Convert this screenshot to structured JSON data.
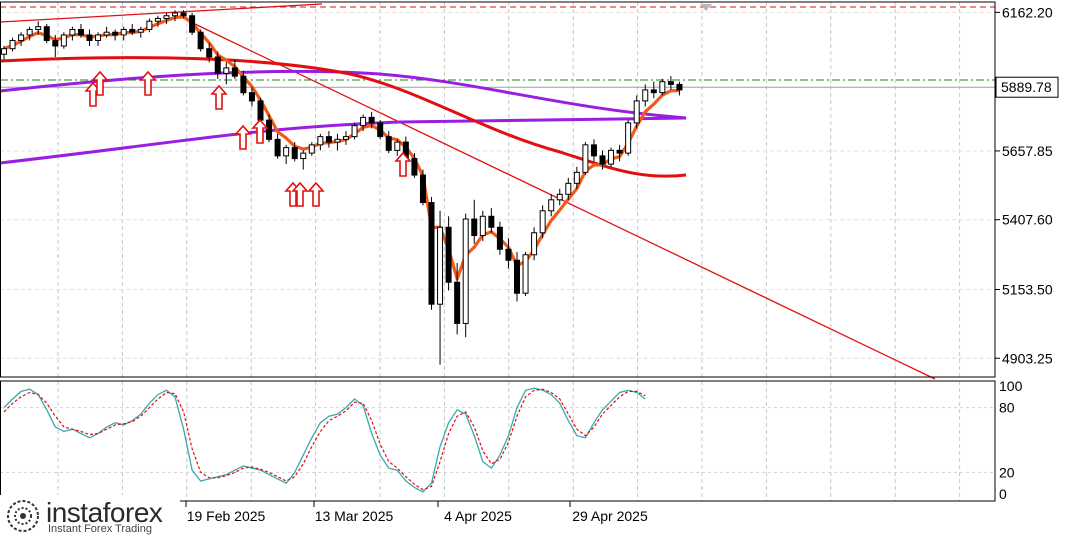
{
  "chart_data": [
    {
      "type": "candlestick",
      "price_ticks": [
        6162.2,
        5657.85,
        5407.6,
        5153.5,
        4903.25
      ],
      "price_ticks_text": [
        "6162.20",
        "5657.85",
        "5407.60",
        "5153.50",
        "4903.25"
      ],
      "current_price": 5889.78,
      "current_price_text": "5889.78",
      "ylim": [
        4835,
        6200
      ],
      "date_labels": [
        "19 Feb 2025",
        "13 Mar 2025",
        "4 Apr 2025",
        "29 Apr 2025"
      ],
      "candles": [
        [
          6010,
          6040,
          5990,
          6030
        ],
        [
          6030,
          6070,
          6020,
          6060
        ],
        [
          6060,
          6090,
          6040,
          6080
        ],
        [
          6080,
          6110,
          6060,
          6100
        ],
        [
          6100,
          6130,
          6080,
          6110
        ],
        [
          6110,
          6120,
          6050,
          6060
        ],
        [
          6060,
          6080,
          6000,
          6040
        ],
        [
          6040,
          6090,
          6030,
          6080
        ],
        [
          6080,
          6110,
          6060,
          6100
        ],
        [
          6100,
          6120,
          6070,
          6080
        ],
        [
          6080,
          6100,
          6040,
          6060
        ],
        [
          6060,
          6090,
          6040,
          6080
        ],
        [
          6080,
          6110,
          6070,
          6090
        ],
        [
          6090,
          6100,
          6060,
          6080
        ],
        [
          6080,
          6110,
          6060,
          6100
        ],
        [
          6100,
          6120,
          6080,
          6090
        ],
        [
          6090,
          6110,
          6070,
          6100
        ],
        [
          6100,
          6140,
          6090,
          6130
        ],
        [
          6130,
          6150,
          6110,
          6140
        ],
        [
          6140,
          6160,
          6120,
          6150
        ],
        [
          6150,
          6170,
          6130,
          6160
        ],
        [
          6160,
          6170,
          6140,
          6150
        ],
        [
          6150,
          6160,
          6080,
          6090
        ],
        [
          6090,
          6100,
          6020,
          6030
        ],
        [
          6030,
          6050,
          5980,
          6000
        ],
        [
          6000,
          6020,
          5920,
          5940
        ],
        [
          5940,
          5980,
          5900,
          5960
        ],
        [
          5960,
          5990,
          5920,
          5930
        ],
        [
          5930,
          5950,
          5860,
          5870
        ],
        [
          5870,
          5890,
          5820,
          5840
        ],
        [
          5840,
          5850,
          5760,
          5770
        ],
        [
          5770,
          5790,
          5690,
          5700
        ],
        [
          5700,
          5720,
          5630,
          5640
        ],
        [
          5640,
          5680,
          5610,
          5670
        ],
        [
          5670,
          5690,
          5620,
          5630
        ],
        [
          5630,
          5660,
          5590,
          5650
        ],
        [
          5650,
          5690,
          5640,
          5680
        ],
        [
          5680,
          5720,
          5660,
          5710
        ],
        [
          5710,
          5730,
          5670,
          5690
        ],
        [
          5690,
          5720,
          5660,
          5700
        ],
        [
          5700,
          5730,
          5680,
          5710
        ],
        [
          5710,
          5760,
          5700,
          5750
        ],
        [
          5750,
          5790,
          5730,
          5780
        ],
        [
          5780,
          5800,
          5740,
          5760
        ],
        [
          5760,
          5770,
          5700,
          5710
        ],
        [
          5710,
          5730,
          5650,
          5660
        ],
        [
          5660,
          5700,
          5640,
          5690
        ],
        [
          5690,
          5710,
          5620,
          5630
        ],
        [
          5630,
          5650,
          5560,
          5570
        ],
        [
          5570,
          5590,
          5460,
          5470
        ],
        [
          5470,
          5490,
          5080,
          5100
        ],
        [
          5100,
          5440,
          4880,
          5380
        ],
        [
          5380,
          5420,
          5150,
          5180
        ],
        [
          5180,
          5250,
          4990,
          5030
        ],
        [
          5030,
          5430,
          4980,
          5410
        ],
        [
          5410,
          5480,
          5320,
          5350
        ],
        [
          5350,
          5440,
          5330,
          5420
        ],
        [
          5420,
          5450,
          5360,
          5380
        ],
        [
          5380,
          5400,
          5280,
          5300
        ],
        [
          5300,
          5340,
          5230,
          5260
        ],
        [
          5260,
          5290,
          5110,
          5140
        ],
        [
          5140,
          5290,
          5130,
          5280
        ],
        [
          5280,
          5380,
          5260,
          5360
        ],
        [
          5360,
          5460,
          5340,
          5440
        ],
        [
          5440,
          5500,
          5420,
          5480
        ],
        [
          5480,
          5520,
          5460,
          5500
        ],
        [
          5500,
          5560,
          5480,
          5540
        ],
        [
          5540,
          5600,
          5520,
          5580
        ],
        [
          5580,
          5690,
          5570,
          5680
        ],
        [
          5680,
          5700,
          5620,
          5640
        ],
        [
          5640,
          5660,
          5590,
          5610
        ],
        [
          5610,
          5670,
          5600,
          5660
        ],
        [
          5660,
          5680,
          5620,
          5650
        ],
        [
          5650,
          5770,
          5640,
          5760
        ],
        [
          5760,
          5860,
          5740,
          5840
        ],
        [
          5840,
          5900,
          5820,
          5880
        ],
        [
          5880,
          5910,
          5850,
          5870
        ],
        [
          5870,
          5920,
          5860,
          5910
        ],
        [
          5910,
          5930,
          5880,
          5900
        ],
        [
          5900,
          5910,
          5860,
          5880
        ]
      ]
    },
    {
      "type": "line",
      "oscillator_ticks": [
        100,
        80,
        20,
        0
      ],
      "oscillator_ticks_text": [
        "100",
        "80",
        "20",
        "0"
      ],
      "ylim": [
        0,
        100
      ],
      "series": [
        {
          "values": [
            80,
            88,
            95,
            97,
            92,
            78,
            62,
            58,
            60,
            56,
            52,
            56,
            62,
            66,
            64,
            68,
            74,
            84,
            92,
            96,
            90,
            60,
            22,
            12,
            14,
            16,
            18,
            22,
            26,
            24,
            22,
            18,
            14,
            10,
            20,
            36,
            52,
            66,
            72,
            74,
            80,
            88,
            82,
            56,
            36,
            24,
            22,
            12,
            6,
            2,
            10,
            44,
            66,
            78,
            74,
            54,
            30,
            24,
            36,
            54,
            80,
            96,
            98,
            96,
            92,
            84,
            68,
            54,
            52,
            66,
            78,
            86,
            94,
            96,
            94,
            88
          ]
        },
        {
          "values": [
            76,
            84,
            90,
            94,
            92,
            84,
            72,
            62,
            60,
            58,
            55,
            56,
            60,
            64,
            65,
            67,
            72,
            80,
            88,
            94,
            93,
            76,
            42,
            20,
            15,
            15,
            17,
            20,
            24,
            25,
            23,
            20,
            16,
            12,
            16,
            28,
            44,
            58,
            68,
            72,
            77,
            85,
            84,
            68,
            46,
            30,
            24,
            16,
            9,
            4,
            7,
            30,
            56,
            72,
            76,
            62,
            40,
            28,
            32,
            48,
            72,
            90,
            96,
            97,
            94,
            88,
            74,
            60,
            54,
            62,
            74,
            82,
            90,
            95,
            95,
            91
          ]
        }
      ]
    }
  ],
  "colors": {
    "up": "#ffffff",
    "down": "#000000",
    "ma_orange": "#f05a1a",
    "ma_red": "#e01010",
    "ma_purple": "#9a1ee0",
    "arrow": "#e01010",
    "trendline": "#e01010",
    "osc_main": "#3aa8b0",
    "osc_signal": "#e01010",
    "grid": "#c8c8c8"
  },
  "logo": {
    "brand": "instaforex",
    "tagline": "Instant Forex Trading"
  }
}
